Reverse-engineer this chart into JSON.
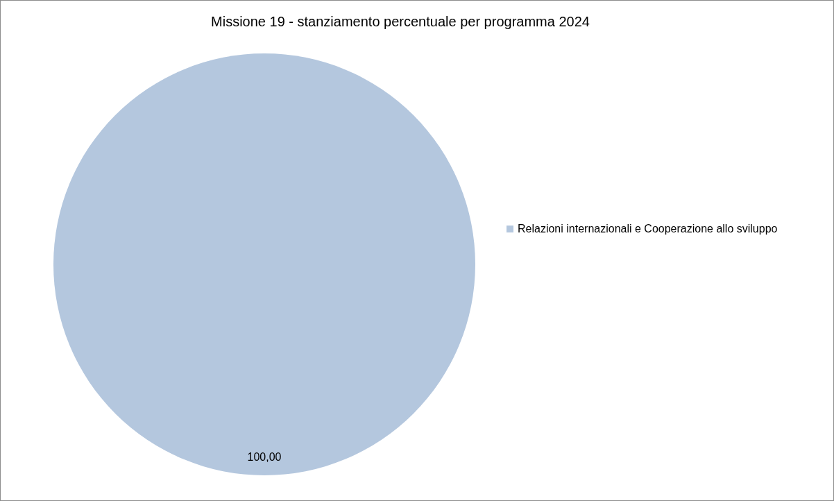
{
  "chart_data": {
    "type": "pie",
    "title": "Missione 19 - stanziamento percentuale per programma 2024",
    "categories": [
      "Relazioni internazionali e Cooperazione allo sviluppo"
    ],
    "values": [
      100
    ],
    "colors": [
      "#b4c7de"
    ],
    "value_labels": [
      "100,00"
    ],
    "legend": "right"
  }
}
